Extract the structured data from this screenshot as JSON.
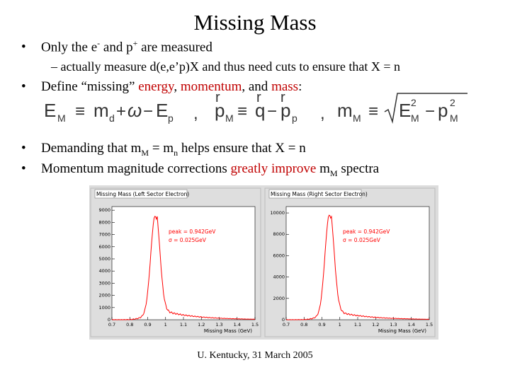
{
  "slide": {
    "title": "Missing Mass",
    "bullet1": {
      "a": "Only the e",
      "sup1": "-",
      "b": " and p",
      "sup2": "+",
      "c": " are measured"
    },
    "sub1": "– actually measure d(e,e’p)X and thus need cuts to ensure that X = n",
    "bullet2": {
      "a": "Define “missing” ",
      "energy": "energy",
      "comma1": ", ",
      "momentum": "momentum",
      "and": ", and ",
      "mass": "mass",
      "colon": ":"
    },
    "bullet3": {
      "a": "Demanding that m",
      "sub1": "M",
      "b": " = m",
      "sub2": "n",
      "c": " helps ensure that X = n"
    },
    "bullet4": {
      "a": "Momentum magnitude corrections ",
      "red": "greatly improve",
      "b": " m",
      "sub": "M",
      "c": " spectra"
    },
    "footer": "U. Kentucky, 31 March 2005"
  },
  "equations": {
    "e1_lhs": "E",
    "e1_lhs_sub": "M",
    "e1_equiv": "≡",
    "e1_md": "m",
    "e1_md_sub": "d",
    "e1_plus": "+",
    "e1_omega": "ω",
    "e1_minus": "−",
    "e1_Ep": "E",
    "e1_Ep_sub": "p",
    "e1_comma": ",",
    "e2_arrow1": "r",
    "e2_arrow2": "r",
    "e2_arrow3": "r",
    "e2_lhs": "p",
    "e2_lhs_sub": "M",
    "e2_equiv": "≡",
    "e2_q": "q",
    "e2_minus": "−",
    "e2_p": "p",
    "e2_p_sub": "p",
    "e2_comma": ",",
    "e3_lhs": "m",
    "e3_lhs_sub": "M",
    "e3_equiv": "≡",
    "e3_E": "E",
    "e3_E_sup": "2",
    "e3_E_sub": "M",
    "e3_minus": "−",
    "e3_p": "p",
    "e3_p_sup": "2",
    "e3_p_sub": "M"
  },
  "plots": [
    {
      "title": "Missing Mass (Left Sector Electron)",
      "xlabel": "Missing Mass (GeV)",
      "xticks": [
        "0.7",
        "0.8",
        "0.9",
        "1",
        "1.1",
        "1.2",
        "1.3",
        "1.4",
        "1.5"
      ],
      "yticks": [
        "0",
        "1000",
        "2000",
        "3000",
        "4000",
        "5000",
        "6000",
        "7000",
        "8000",
        "9000"
      ],
      "ymax": 9300,
      "peak_label": "peak = 0.942GeV",
      "sigma_label": "σ = 0.025GeV",
      "peak_x": 0.942,
      "sigma": 0.025,
      "peak_height": 8400,
      "line_color": "#ff0000"
    },
    {
      "title": "Missing Mass (Right Sector Electron)",
      "xlabel": "Missing Mass (GeV)",
      "xticks": [
        "0.7",
        "0.8",
        "0.9",
        "1",
        "1.1",
        "1.2",
        "1.3",
        "1.4",
        "1.5"
      ],
      "yticks": [
        "0",
        "2000",
        "4000",
        "6000",
        "8000",
        "10000"
      ],
      "ymax": 10600,
      "peak_label": "peak = 0.942GeV",
      "sigma_label": "σ = 0.025GeV",
      "peak_x": 0.942,
      "sigma": 0.025,
      "peak_height": 9700,
      "line_color": "#ff0000"
    }
  ]
}
